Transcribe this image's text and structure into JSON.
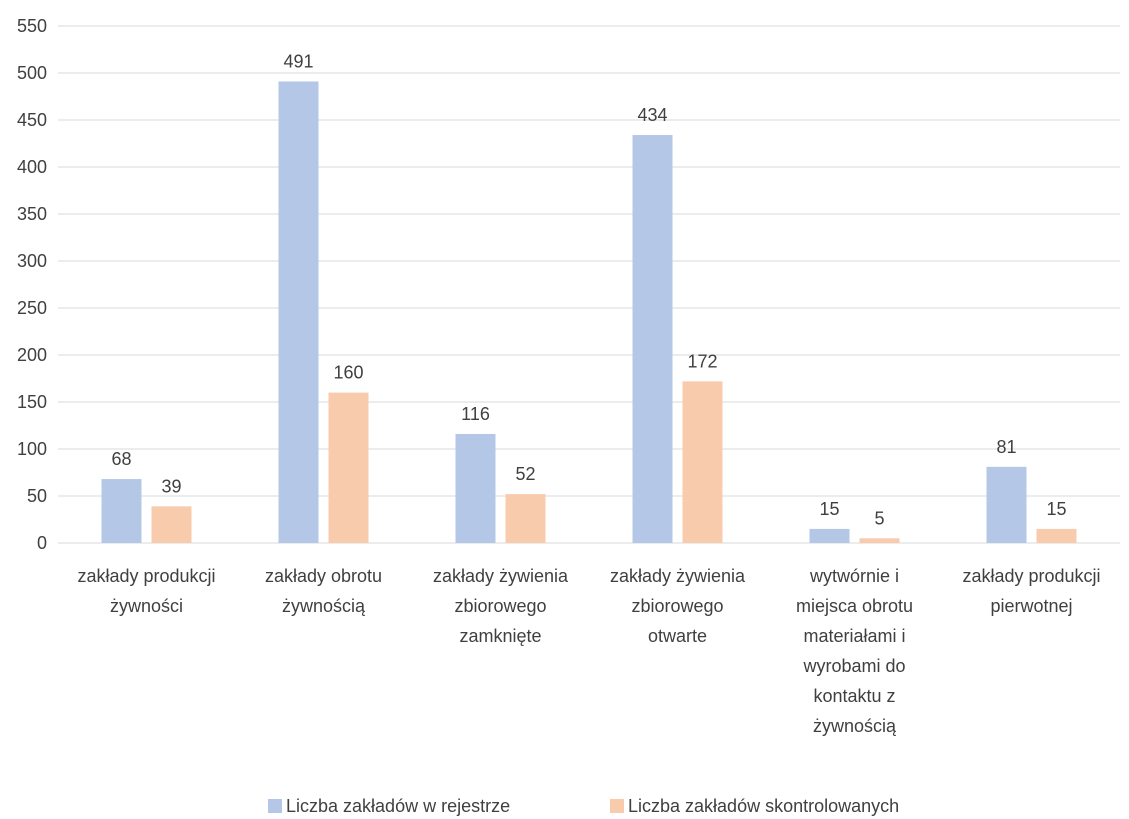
{
  "chart_data": {
    "type": "bar",
    "categories": [
      [
        "zakłady produkcji",
        "żywności"
      ],
      [
        "zakłady obrotu",
        "żywnością"
      ],
      [
        "zakłady żywienia",
        "zbiorowego",
        "zamknięte"
      ],
      [
        "zakłady żywienia",
        "zbiorowego",
        "otwarte"
      ],
      [
        "wytwórnie i",
        "miejsca obrotu",
        "materiałami i",
        "wyrobami do",
        "kontaktu z",
        "żywnością"
      ],
      [
        "zakłady produkcji",
        "pierwotnej"
      ]
    ],
    "series": [
      {
        "name": "Liczba zakładów w rejestrze",
        "color": "#b4c7e7",
        "values": [
          68,
          491,
          116,
          434,
          15,
          81
        ]
      },
      {
        "name": "Liczba zakładów skontrolowanych",
        "color": "#f8cbad",
        "values": [
          39,
          160,
          52,
          172,
          5,
          15
        ]
      }
    ],
    "ylim": [
      0,
      550
    ],
    "yticks": [
      0,
      50,
      100,
      150,
      200,
      250,
      300,
      350,
      400,
      450,
      500,
      550
    ],
    "grid": true,
    "legend": "bottom",
    "title": "",
    "xlabel": "",
    "ylabel": ""
  }
}
